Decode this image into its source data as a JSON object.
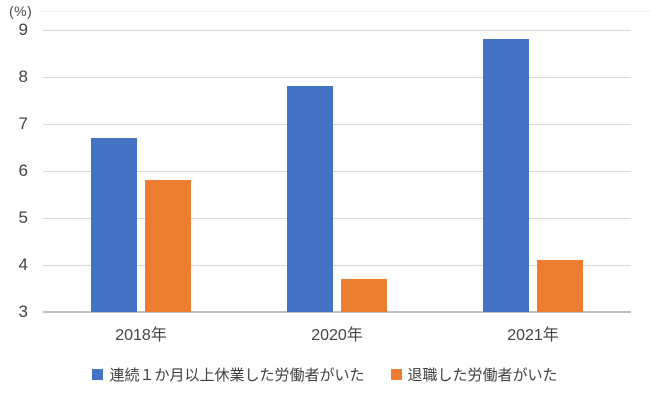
{
  "chart_data": {
    "type": "bar",
    "unit_label": "(%)",
    "categories": [
      "2018年",
      "2020年",
      "2021年"
    ],
    "series": [
      {
        "name": "連続１か月以上休業した労働者がいた",
        "color": "#4472C4",
        "values": [
          6.7,
          7.8,
          8.8
        ]
      },
      {
        "name": "退職した労働者がいた",
        "color": "#ED7D31",
        "values": [
          5.8,
          3.7,
          4.1
        ]
      }
    ],
    "ylim": [
      3,
      9
    ],
    "yticks": [
      3,
      4,
      5,
      6,
      7,
      8,
      9
    ],
    "grid": true,
    "legend_position": "bottom",
    "colors": {
      "gridline": "#d9d9d9",
      "axis_line": "#bfbfbf",
      "tick_text": "#444444"
    }
  }
}
